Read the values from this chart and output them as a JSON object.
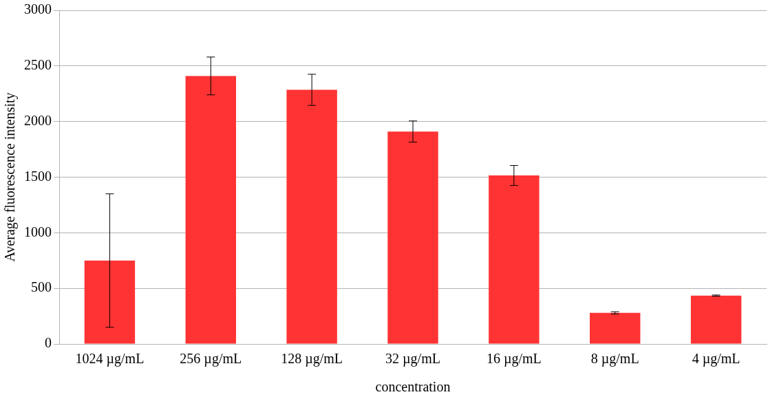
{
  "chart_data": {
    "type": "bar",
    "xlabel": "concentration",
    "ylabel": "Average fluorescence intensity",
    "categories": [
      "1024 µg/mL",
      "256 µg/mL",
      "128 µg/mL",
      "32 µg/mL",
      "16 µg/mL",
      "8 µg/mL",
      "4 µg/mL"
    ],
    "values": [
      750,
      2410,
      2285,
      1910,
      1515,
      280,
      435
    ],
    "errors": [
      [
        150,
        1350
      ],
      170,
      140,
      95,
      90,
      10,
      5
    ],
    "color": "#ff3333",
    "ylim": [
      0,
      3000
    ],
    "yticks": [
      0,
      500,
      1000,
      1500,
      2000,
      2500,
      3000
    ],
    "grid": "y",
    "legend": false
  }
}
